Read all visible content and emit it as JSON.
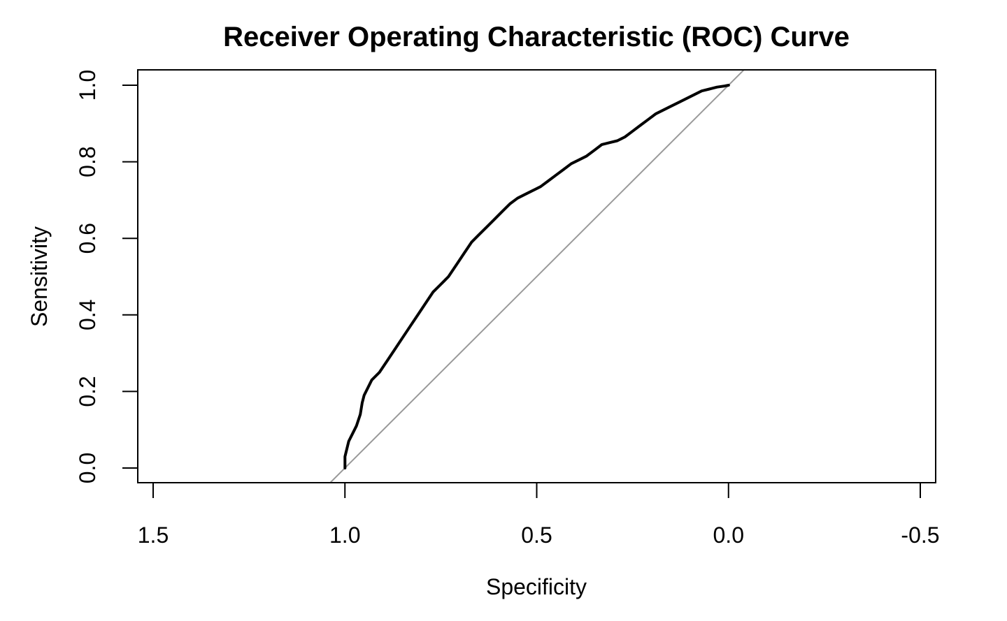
{
  "chart_data": {
    "type": "line",
    "title": "Receiver Operating Characteristic (ROC) Curve",
    "xlabel": "Specificity",
    "ylabel": "Sensitivity",
    "x_reversed": true,
    "xlim": [
      1.5,
      -0.5
    ],
    "ylim": [
      0.0,
      1.0
    ],
    "x_ticks": [
      1.5,
      1.0,
      0.5,
      0.0,
      -0.5
    ],
    "x_tick_labels": [
      "1.5",
      "1.0",
      "0.5",
      "0.0",
      "-0.5"
    ],
    "y_ticks": [
      0.0,
      0.2,
      0.4,
      0.6,
      0.8,
      1.0
    ],
    "y_tick_labels": [
      "0.0",
      "0.2",
      "0.4",
      "0.6",
      "0.8",
      "1.0"
    ],
    "grid": false,
    "series": [
      {
        "color": "#000000",
        "x": [
          1.0,
          1.0,
          0.995,
          0.99,
          0.98,
          0.97,
          0.96,
          0.955,
          0.95,
          0.94,
          0.93,
          0.91,
          0.89,
          0.87,
          0.85,
          0.83,
          0.81,
          0.79,
          0.77,
          0.75,
          0.73,
          0.71,
          0.69,
          0.67,
          0.65,
          0.63,
          0.61,
          0.59,
          0.57,
          0.55,
          0.53,
          0.51,
          0.49,
          0.47,
          0.45,
          0.43,
          0.41,
          0.39,
          0.37,
          0.35,
          0.33,
          0.31,
          0.29,
          0.27,
          0.25,
          0.23,
          0.21,
          0.19,
          0.17,
          0.15,
          0.13,
          0.11,
          0.09,
          0.07,
          0.05,
          0.03,
          0.01,
          0.0
        ],
        "y": [
          0.0,
          0.03,
          0.05,
          0.07,
          0.09,
          0.11,
          0.14,
          0.17,
          0.19,
          0.21,
          0.23,
          0.25,
          0.28,
          0.31,
          0.34,
          0.37,
          0.4,
          0.43,
          0.46,
          0.48,
          0.5,
          0.53,
          0.56,
          0.59,
          0.61,
          0.63,
          0.65,
          0.67,
          0.69,
          0.705,
          0.715,
          0.725,
          0.735,
          0.75,
          0.765,
          0.78,
          0.795,
          0.805,
          0.815,
          0.83,
          0.845,
          0.85,
          0.855,
          0.865,
          0.88,
          0.895,
          0.91,
          0.925,
          0.935,
          0.945,
          0.955,
          0.965,
          0.975,
          0.985,
          0.99,
          0.995,
          0.998,
          1.0
        ]
      },
      {
        "color": "#999999",
        "x": [
          1.04,
          -0.04
        ],
        "y": [
          -0.04,
          1.04
        ]
      }
    ]
  }
}
